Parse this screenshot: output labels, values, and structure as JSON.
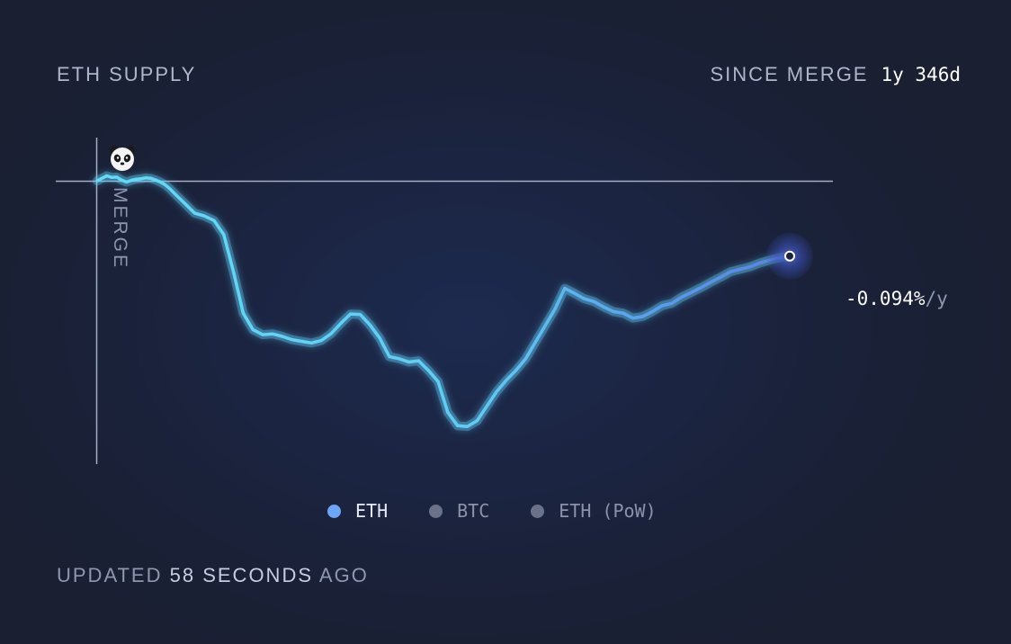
{
  "header": {
    "title": "ETH SUPPLY",
    "since_label": "SINCE MERGE",
    "since_value": "1y 346d"
  },
  "annotation": {
    "merge_label": "MERGE",
    "merge_icon": "panda-icon"
  },
  "current_rate": {
    "value": "-0.094%",
    "unit": "/y"
  },
  "legend": [
    {
      "label": "ETH",
      "color": "#6ea6f7",
      "active": true
    },
    {
      "label": "BTC",
      "color": "#6b7189",
      "active": false
    },
    {
      "label": "ETH (PoW)",
      "color": "#6b7189",
      "active": false
    }
  ],
  "footer": {
    "prefix": "UPDATED",
    "count": "58 SECONDS",
    "suffix": "AGO"
  },
  "colors": {
    "line_start": "#5fdcf5",
    "line_end": "#5d85e8",
    "axis": "#a5adc4",
    "background": "#1b2440"
  },
  "chart_data": {
    "type": "line",
    "title": "ETH SUPPLY",
    "x_unit": "days since merge",
    "ylabel": "",
    "baseline_y": 0,
    "series": [
      {
        "name": "ETH",
        "x": [
          0,
          5,
          10,
          15,
          20,
          25,
          30,
          35,
          40,
          45,
          50,
          55,
          60,
          65,
          70,
          75,
          80,
          90,
          100,
          110,
          120,
          130,
          140,
          150,
          160,
          170,
          180,
          190,
          200,
          210,
          220,
          230,
          240,
          250,
          260,
          270,
          280,
          290,
          300,
          310,
          320,
          330,
          340,
          350,
          360,
          370,
          380,
          390,
          400,
          410,
          420,
          430,
          440,
          450,
          460,
          470,
          480,
          490,
          500,
          510,
          520,
          530,
          540,
          550,
          560,
          570,
          580,
          590,
          600,
          610,
          620,
          630,
          640,
          650,
          660,
          670,
          680,
          690,
          700,
          711
        ],
        "y": [
          0,
          0.6,
          1.2,
          0.8,
          0.9,
          0.2,
          -0.3,
          0.1,
          0.4,
          0.5,
          0.7,
          0.6,
          0.2,
          -0.3,
          -1.0,
          -2.0,
          -3.2,
          -5.5,
          -7.8,
          -8.5,
          -9.6,
          -13.0,
          -22.0,
          -32.0,
          -36.0,
          -37.2,
          -37.0,
          -37.6,
          -38.4,
          -38.8,
          -39.2,
          -38.6,
          -37.0,
          -34.5,
          -32.2,
          -32.3,
          -34.8,
          -38.0,
          -42.5,
          -43.0,
          -43.8,
          -43.5,
          -45.8,
          -48.5,
          -56.0,
          -59.2,
          -59.4,
          -58.0,
          -54.5,
          -51.0,
          -48.2,
          -45.8,
          -43.0,
          -39.0,
          -35.0,
          -31.0,
          -26.0,
          -27.2,
          -28.5,
          -29.2,
          -30.5,
          -31.6,
          -32.0,
          -33.2,
          -32.8,
          -31.6,
          -30.2,
          -29.6,
          -28.1,
          -27.0,
          -25.8,
          -24.5,
          -23.3,
          -22.0,
          -21.4,
          -20.8,
          -19.9,
          -19.2,
          -18.6,
          -18.2
        ]
      }
    ]
  }
}
